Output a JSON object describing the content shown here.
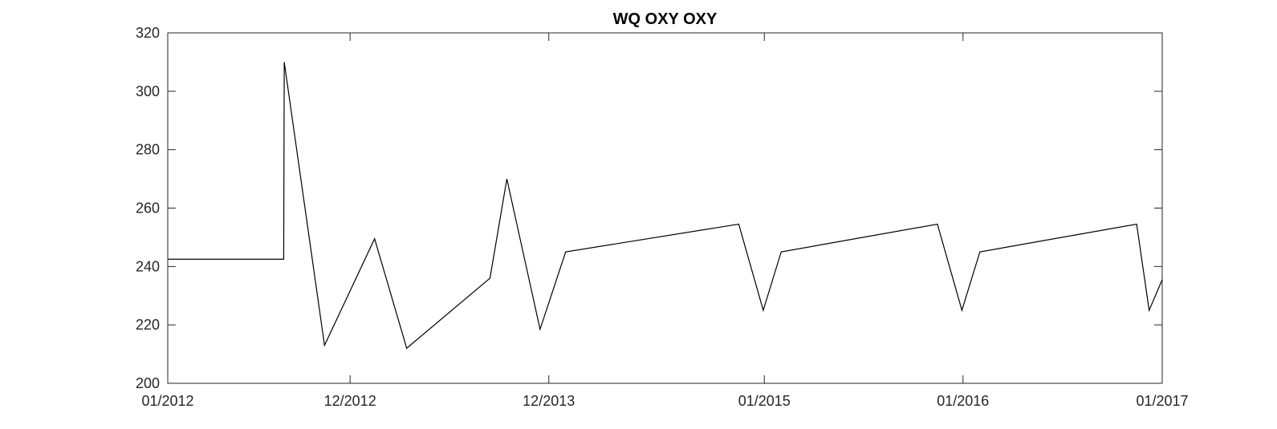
{
  "chart_data": {
    "type": "line",
    "title": "WQ OXY OXY",
    "xlabel": "",
    "ylabel": "",
    "ylim": [
      200,
      320
    ],
    "yticks": [
      200,
      220,
      240,
      260,
      280,
      300,
      320
    ],
    "xlim": [
      "2012-01-01",
      "2017-01-01"
    ],
    "xticks": [
      {
        "date": "2012-01-01",
        "label": "01/2012"
      },
      {
        "date": "2012-12-01",
        "label": "12/2012"
      },
      {
        "date": "2013-12-01",
        "label": "12/2013"
      },
      {
        "date": "2015-01-01",
        "label": "01/2015"
      },
      {
        "date": "2016-01-01",
        "label": "01/2016"
      },
      {
        "date": "2017-01-01",
        "label": "01/2017"
      }
    ],
    "grid": false,
    "series": [
      {
        "color": "#000000",
        "x": [
          "2012-01-01",
          "2012-08-01",
          "2012-08-02",
          "2012-10-15",
          "2013-01-15",
          "2013-03-15",
          "2013-08-15",
          "2013-09-15",
          "2013-11-15",
          "2014-01-01",
          "2014-11-15",
          "2014-12-30",
          "2015-02-01",
          "2015-11-15",
          "2015-12-30",
          "2016-02-01",
          "2016-11-15",
          "2016-12-08",
          "2017-01-01"
        ],
        "y": [
          242.5,
          242.5,
          310,
          213,
          249.5,
          212,
          236,
          270,
          218.5,
          245,
          254.5,
          225,
          245,
          254.5,
          225,
          245,
          254.5,
          225,
          235.5
        ]
      }
    ]
  }
}
